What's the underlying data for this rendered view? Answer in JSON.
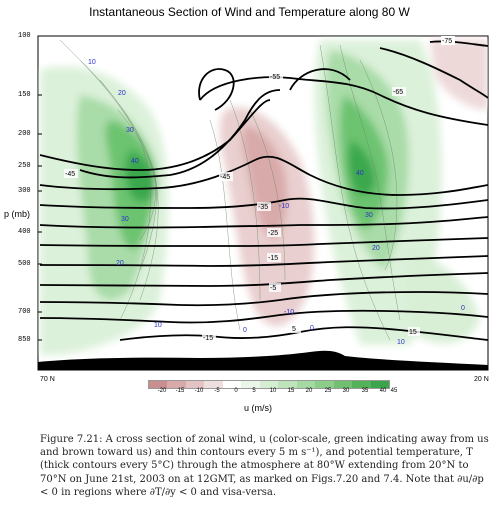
{
  "title": "Instantaneous Section of Wind and Temperature along 80 W",
  "chart_data": {
    "type": "heatmap",
    "title": "Instantaneous Section of Wind and Temperature along 80 W",
    "ylabel": "p (mb)",
    "xlabel": "u (m/s)",
    "y_ticks": [
      "100",
      "150",
      "200",
      "250",
      "300",
      "400",
      "500",
      "700",
      "850"
    ],
    "x_ticks": [
      "70 N",
      "20 N"
    ],
    "colorbar_ticks": [
      "-20",
      "-15",
      "-10",
      "-5",
      "0",
      "5",
      "10",
      "15",
      "20",
      "25",
      "30",
      "35",
      "40",
      "45"
    ],
    "wind_contour_labels": [
      "10",
      "20",
      "30",
      "40",
      "30",
      "20",
      "10",
      "0",
      "-10",
      "-10",
      "0",
      "40",
      "30",
      "20",
      "0",
      "10"
    ],
    "temperature_contour_labels": [
      "-75",
      "-65",
      "-55",
      "-45",
      "-45",
      "-35",
      "-25",
      "-15",
      "-5",
      "5",
      "15",
      "-15"
    ],
    "colors": {
      "positive": "#33a84a",
      "negative": "#b25a5a"
    }
  },
  "caption": {
    "text": "Figure 7.21: A cross section of zonal wind, u (color-scale, green indicating away from us and brown toward us) and thin contours every 5 m s⁻¹), and potential temperature, T (thick contours every 5°C) through the atmosphere at 80°W extending from 20°N to 70°N on June 21st, 2003 on at 12GMT, as marked on Figs.7.20 and 7.4. Note that ∂u/∂p < 0 in regions where ∂T/∂y < 0 and visa-versa."
  }
}
